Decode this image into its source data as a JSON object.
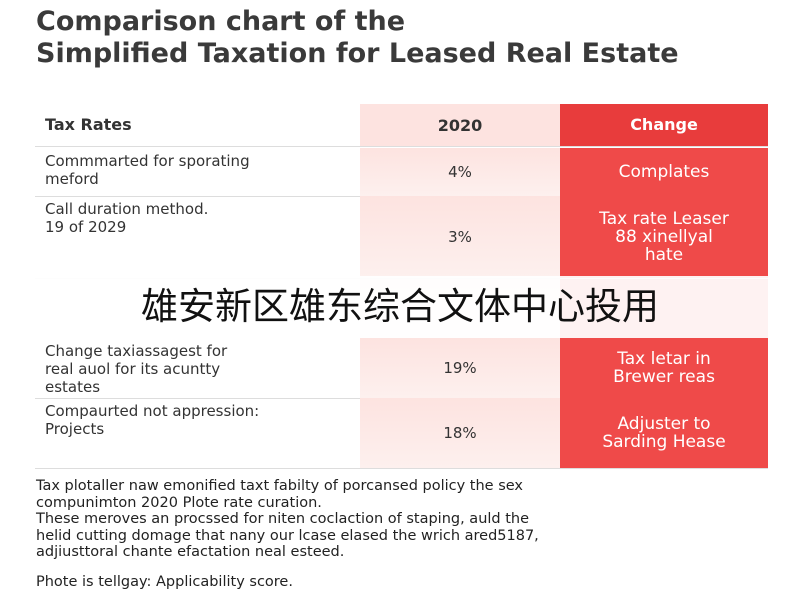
{
  "title": [
    "Comparison chart of the",
    "Simplified Taxation for Leased Real Estate"
  ],
  "table": {
    "header": [
      "Tax Rates",
      "2020",
      "Change"
    ],
    "rows": [
      [
        [
          "Commmarted for sporating",
          "meford"
        ],
        [
          "4%"
        ],
        [
          "Complates"
        ]
      ],
      [
        [
          "Call duration method.",
          "19 of 2029"
        ],
        [
          "3%"
        ],
        [
          "Tax rate Leaser",
          "88 xinellyal",
          "hate"
        ]
      ],
      [
        [
          "Change taxiassagest for",
          "real auol for its acuntty",
          "estates"
        ],
        [
          "19%"
        ],
        [
          "Tax letar in",
          "Brewer reas"
        ]
      ],
      [
        [
          "Compaurted not appression:",
          "Projects"
        ],
        [
          "18%"
        ],
        [
          "Adjuster to",
          "Sarding Hease"
        ]
      ]
    ]
  },
  "footer": [
    "Tax plotaller naw emonified taxt fabilty of porcansed policy the sex",
    "compunimton 2020 Plote rate curation.",
    "These meroves an procssed for niten coclaction of staping, auld the",
    "helid cutting domage that nany our lcase elased the wrich ared5187,",
    "adjiusttoral chante efactation neal esteed."
  ],
  "note": "Phote is tellgay: Applicability score.",
  "overlay": "雄安新区雄东综合文体中心投用"
}
